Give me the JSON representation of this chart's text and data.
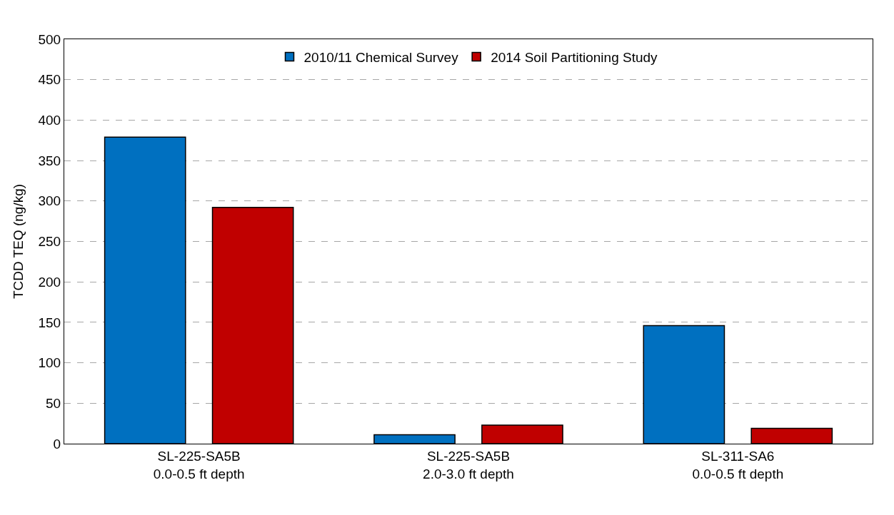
{
  "chart_data": {
    "type": "bar",
    "ylabel": "TCDD TEQ (ng/kg)",
    "categories": [
      "SL-225-SA5B\n0.0-0.5 ft depth",
      "SL-225-SA5B\n2.0-3.0 ft depth",
      "SL-311-SA6\n0.0-0.5 ft depth"
    ],
    "series": [
      {
        "name": "2010/11 Chemical Survey",
        "color": "#0070c0",
        "values": [
          379,
          11,
          146
        ]
      },
      {
        "name": "2014 Soil Partitioning Study",
        "color": "#c00000",
        "values": [
          292,
          23,
          19
        ]
      }
    ],
    "ylim": [
      0,
      500
    ],
    "yticks": [
      0,
      50,
      100,
      150,
      200,
      250,
      300,
      350,
      400,
      450,
      500
    ],
    "grid": "y",
    "legend": "top"
  }
}
